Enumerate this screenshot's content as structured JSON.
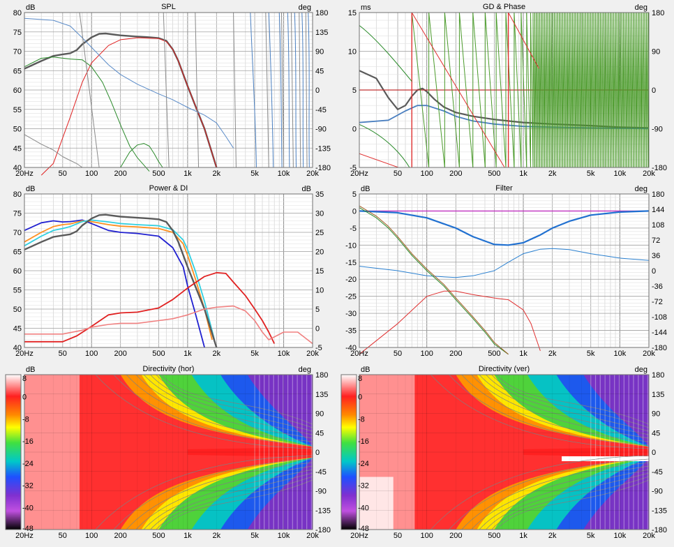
{
  "chart_data": [
    {
      "id": "spl",
      "type": "line",
      "title": "SPL",
      "ylabel": "dB",
      "y2label": "deg",
      "xscale": "log",
      "xlim": [
        20,
        20000
      ],
      "ylim": [
        40,
        80
      ],
      "y2lim": [
        -180,
        180
      ],
      "xticks": [
        20,
        50,
        100,
        200,
        500,
        1000,
        2000,
        5000,
        10000,
        20000
      ],
      "xtick_labels": [
        "20Hz",
        "50",
        "100",
        "200",
        "500",
        "1k",
        "2k",
        "5k",
        "10k",
        "20k"
      ],
      "yticks": [
        40,
        45,
        50,
        55,
        60,
        65,
        70,
        75,
        80
      ],
      "y2ticks": [
        -180,
        -135,
        -90,
        -45,
        0,
        45,
        90,
        135,
        180
      ],
      "series": [
        {
          "color": "#5a5a5a",
          "width": 2.4,
          "x": [
            20,
            30,
            40,
            50,
            60,
            70,
            80,
            100,
            120,
            140,
            200,
            300,
            400,
            500,
            600,
            700,
            800,
            1000,
            1200,
            1500,
            2000
          ],
          "y": [
            65.5,
            67.5,
            68.8,
            69.2,
            69.5,
            70.3,
            71.8,
            73.6,
            74.5,
            74.6,
            74.1,
            73.8,
            73.6,
            73.4,
            72.7,
            70.5,
            67.5,
            61,
            56,
            50,
            40
          ]
        },
        {
          "color": "#e02020",
          "width": 1,
          "x": [
            30,
            40,
            60,
            80,
            100,
            150,
            200,
            300,
            500,
            600,
            700,
            800,
            1000,
            1500,
            2000
          ],
          "y": [
            35,
            41,
            53,
            62,
            67,
            71.5,
            73,
            73.5,
            73.3,
            72.5,
            70.5,
            67.5,
            61,
            50,
            40
          ]
        },
        {
          "color": "#2a8a2a",
          "width": 1,
          "x": [
            20,
            30,
            40,
            60,
            80,
            100,
            130,
            160,
            200,
            250,
            300,
            400
          ],
          "y": [
            66,
            68.2,
            68.5,
            68,
            67.8,
            66,
            62,
            57,
            51,
            45.5,
            42.5,
            39
          ]
        },
        {
          "color": "#2a8a2a",
          "width": 1,
          "x": [
            200,
            250,
            300,
            350,
            400,
            450,
            500,
            550
          ],
          "y": [
            40,
            44,
            45.8,
            46.2,
            45.5,
            43.5,
            41.5,
            40
          ]
        },
        {
          "color": "#5a8bc8",
          "width": 1,
          "x": [
            20,
            40,
            60,
            80,
            100,
            150,
            200,
            300,
            500,
            700,
            1000,
            1500,
            2000,
            2500,
            3000
          ],
          "y": [
            78.5,
            78,
            76.5,
            73.5,
            71,
            66.5,
            64,
            61.5,
            59,
            57.5,
            55.5,
            53.5,
            51.5,
            48,
            45
          ]
        },
        {
          "color": "#8a8a8a",
          "width": 1,
          "x": [
            20,
            30,
            40,
            50,
            60,
            70,
            80,
            100,
            150,
            200,
            300,
            400,
            500
          ],
          "y": [
            48.5,
            46,
            44.5,
            42.8,
            41.8,
            41,
            40,
            40,
            40,
            40,
            40,
            40,
            40
          ]
        }
      ]
    },
    {
      "id": "gd_phase",
      "type": "line",
      "title": "GD & Phase",
      "ylabel": "ms",
      "y2label": "deg",
      "xscale": "log",
      "xlim": [
        20,
        20000
      ],
      "ylim": [
        -5,
        15
      ],
      "y2lim": [
        -180,
        180
      ],
      "xticks": [
        20,
        50,
        100,
        200,
        500,
        1000,
        2000,
        5000,
        10000,
        20000
      ],
      "xtick_labels": [
        "20Hz",
        "50",
        "100",
        "200",
        "500",
        "1k",
        "2k",
        "5k",
        "10k",
        "20k"
      ],
      "yticks": [
        -5,
        0,
        5,
        10,
        15
      ],
      "y2ticks": [
        -180,
        -90,
        0,
        90,
        180
      ],
      "series": [
        {
          "color": "#5a5a5a",
          "width": 2.2,
          "x": [
            20,
            30,
            40,
            50,
            60,
            70,
            80,
            90,
            100,
            120,
            150,
            200,
            300,
            500,
            700,
            1000,
            2000,
            5000,
            10000,
            20000
          ],
          "y": [
            7.5,
            6.5,
            4,
            2.5,
            3,
            4.2,
            5,
            5.2,
            4.8,
            3.8,
            2.8,
            2.1,
            1.6,
            1.2,
            1.0,
            0.8,
            0.6,
            0.4,
            0.2,
            0.1
          ]
        },
        {
          "color": "#4a7fc0",
          "width": 1.8,
          "x": [
            20,
            40,
            60,
            80,
            100,
            150,
            200,
            300,
            500,
            1000,
            2000,
            5000,
            10000,
            20000
          ],
          "y": [
            0.8,
            1.1,
            2.3,
            3,
            3,
            2.3,
            1.6,
            1.0,
            0.6,
            0.3,
            0.2,
            0.1,
            0.05,
            0.02
          ]
        },
        {
          "color": "#c03030",
          "width": 1.2,
          "x": [
            20,
            70,
            80,
            100,
            200,
            500,
            700,
            800,
            1000,
            20000
          ],
          "y": [
            5,
            5,
            5,
            5,
            5,
            5,
            5,
            5,
            5,
            5
          ]
        }
      ]
    },
    {
      "id": "power_di",
      "type": "line",
      "title": "Power & DI",
      "ylabel": "dB",
      "y2label": "dB",
      "xscale": "log",
      "xlim": [
        20,
        20000
      ],
      "ylim": [
        40,
        80
      ],
      "y2lim": [
        -5,
        35
      ],
      "xticks": [
        20,
        50,
        100,
        200,
        500,
        1000,
        2000,
        5000,
        10000,
        20000
      ],
      "xtick_labels": [
        "20Hz",
        "50",
        "100",
        "200",
        "500",
        "1k",
        "2k",
        "5k",
        "10k",
        "20k"
      ],
      "yticks": [
        40,
        45,
        50,
        55,
        60,
        65,
        70,
        75,
        80
      ],
      "y2ticks": [
        -5,
        0,
        5,
        10,
        15,
        20,
        25,
        30,
        35
      ],
      "series": [
        {
          "color": "#2020d0",
          "width": 1.8,
          "x": [
            20,
            30,
            40,
            50,
            60,
            80,
            100,
            150,
            200,
            300,
            500,
            700,
            900,
            1000,
            1200,
            1500
          ],
          "y": [
            70.5,
            72.5,
            73,
            72.7,
            72.8,
            73.2,
            72.3,
            70.5,
            70,
            69.7,
            69,
            66,
            61,
            56,
            49,
            40
          ]
        },
        {
          "color": "#ff9020",
          "width": 1.8,
          "x": [
            20,
            30,
            40,
            50,
            60,
            80,
            100,
            150,
            200,
            300,
            500,
            700,
            900,
            1000,
            1200,
            1500,
            1800
          ],
          "y": [
            67.5,
            70,
            71.5,
            72,
            72.2,
            73,
            72.8,
            72,
            71.6,
            71.4,
            71,
            70,
            67,
            64,
            58,
            50,
            42
          ]
        },
        {
          "color": "#30d0e0",
          "width": 1.8,
          "x": [
            20,
            30,
            40,
            50,
            60,
            80,
            100,
            150,
            200,
            300,
            500,
            700,
            900,
            1000,
            1200,
            1500,
            1900
          ],
          "y": [
            66.5,
            69,
            70.5,
            71,
            71.5,
            72.8,
            73.2,
            72.7,
            72.3,
            72,
            71.7,
            70.7,
            68,
            65.5,
            60,
            52,
            42
          ]
        },
        {
          "color": "#5a5a5a",
          "width": 2.4,
          "x": [
            20,
            30,
            40,
            50,
            60,
            70,
            80,
            100,
            120,
            140,
            200,
            300,
            400,
            500,
            600,
            700,
            800,
            1000,
            1200,
            1500,
            2000
          ],
          "y": [
            65.5,
            67.5,
            68.8,
            69.2,
            69.5,
            70.3,
            71.8,
            73.6,
            74.5,
            74.6,
            74.1,
            73.8,
            73.6,
            73.4,
            72.7,
            70.5,
            67.5,
            61,
            56,
            50,
            40
          ]
        },
        {
          "color": "#e02020",
          "width": 1.8,
          "x": [
            20,
            50,
            70,
            100,
            150,
            200,
            300,
            500,
            700,
            1000,
            1500,
            2000,
            2500,
            3000,
            4000,
            5000,
            6000,
            7000,
            8000
          ],
          "y": [
            41.5,
            41.5,
            43,
            45.5,
            48.5,
            49,
            49.2,
            50.3,
            52.5,
            55.5,
            58.5,
            59.5,
            59.3,
            57,
            53.5,
            50,
            47,
            44,
            41
          ]
        },
        {
          "color": "#f08080",
          "width": 1.6,
          "x": [
            20,
            50,
            80,
            100,
            150,
            200,
            300,
            500,
            700,
            1000,
            1500,
            2000,
            3000,
            4000,
            5000,
            6000,
            7000,
            10000,
            14000,
            20000
          ],
          "y": [
            43.5,
            43.5,
            44.5,
            45.3,
            46,
            46.3,
            46.3,
            47,
            47.5,
            48.5,
            50,
            50.5,
            50.8,
            49.5,
            47,
            44,
            42,
            44,
            44,
            41
          ]
        }
      ]
    },
    {
      "id": "filter",
      "type": "line",
      "title": "Filter",
      "ylabel": "dB",
      "y2label": "deg",
      "xscale": "log",
      "xlim": [
        20,
        20000
      ],
      "ylim": [
        -40,
        5
      ],
      "y2lim": [
        -180,
        180
      ],
      "xticks": [
        20,
        50,
        100,
        200,
        500,
        1000,
        2000,
        5000,
        10000,
        20000
      ],
      "xtick_labels": [
        "20Hz",
        "50",
        "100",
        "200",
        "500",
        "1k",
        "2k",
        "5k",
        "10k",
        "20k"
      ],
      "yticks": [
        -40,
        -35,
        -30,
        -25,
        -20,
        -15,
        -10,
        -5,
        0,
        5
      ],
      "y2ticks": [
        -180,
        -144,
        -108,
        -72,
        -36,
        0,
        36,
        72,
        108,
        144,
        180
      ],
      "series": [
        {
          "color": "#c030c0",
          "width": 1.4,
          "x": [
            20,
            20000
          ],
          "y": [
            0,
            0
          ]
        },
        {
          "color": "#2070d0",
          "width": 2.2,
          "x": [
            20,
            50,
            100,
            200,
            300,
            500,
            700,
            1000,
            1500,
            2000,
            3000,
            5000,
            10000,
            20000
          ],
          "y": [
            0,
            -0.5,
            -2,
            -5,
            -7.5,
            -9.8,
            -10,
            -9.3,
            -7,
            -5,
            -3,
            -1.2,
            -0.3,
            0
          ]
        },
        {
          "color": "#2a80d0",
          "width": 1,
          "x": [
            20,
            50,
            100,
            200,
            300,
            500,
            700,
            1000,
            1500,
            2000,
            3000,
            5000,
            10000,
            20000
          ],
          "y": [
            -16.2,
            -17.5,
            -19,
            -19.5,
            -19,
            -17.5,
            -15,
            -12.5,
            -11.2,
            -11,
            -11.3,
            -12.5,
            -13.8,
            -14.5
          ]
        },
        {
          "color": "#2a8a2a",
          "width": 1,
          "x": [
            20,
            30,
            40,
            50,
            70,
            100,
            150,
            200,
            300,
            400,
            500,
            700
          ],
          "y": [
            1,
            -2,
            -5,
            -8,
            -13,
            -17.5,
            -22,
            -26,
            -31.5,
            -35.5,
            -39,
            -44
          ]
        },
        {
          "color": "#a05a20",
          "width": 1,
          "x": [
            20,
            30,
            40,
            50,
            70,
            100,
            150,
            200,
            300,
            400,
            500,
            700
          ],
          "y": [
            1.5,
            -1.5,
            -4.5,
            -7.5,
            -12.5,
            -17,
            -21.5,
            -25.5,
            -31,
            -35,
            -38.5,
            -43.5
          ]
        },
        {
          "color": "#e03030",
          "width": 1,
          "x": [
            20,
            50,
            100,
            150,
            200,
            300,
            500,
            700,
            1000,
            1200,
            1500
          ],
          "y": [
            -45,
            -33,
            -25,
            -23.5,
            -23.5,
            -24.5,
            -25.5,
            -26,
            -29,
            -33,
            -41
          ]
        }
      ]
    },
    {
      "id": "dir_hor",
      "type": "heatmap",
      "title": "Directivity (hor)",
      "ylabel": "dB",
      "y2label": "deg",
      "xscale": "log",
      "xlim": [
        20,
        20000
      ],
      "ylim": [
        -180,
        180
      ],
      "colorbar_ticks": [
        "8",
        "0",
        "-8",
        "-16",
        "-24",
        "-32",
        "-40",
        "-48"
      ],
      "xticks": [
        20,
        50,
        100,
        200,
        500,
        1000,
        2000,
        5000,
        10000,
        20000
      ],
      "xtick_labels": [
        "20Hz",
        "50",
        "100",
        "200",
        "500",
        "1k",
        "2k",
        "5k",
        "10k",
        "20k"
      ],
      "y2ticks": [
        -180,
        -135,
        -90,
        -45,
        0,
        45,
        90,
        135,
        180
      ]
    },
    {
      "id": "dir_ver",
      "type": "heatmap",
      "title": "Directivity (ver)",
      "ylabel": "dB",
      "y2label": "deg",
      "xscale": "log",
      "xlim": [
        20,
        20000
      ],
      "ylim": [
        -180,
        180
      ],
      "colorbar_ticks": [
        "8",
        "0",
        "-8",
        "-16",
        "-24",
        "-32",
        "-40",
        "-48"
      ],
      "xticks": [
        20,
        50,
        100,
        200,
        500,
        1000,
        2000,
        5000,
        10000,
        20000
      ],
      "xtick_labels": [
        "20Hz",
        "50",
        "100",
        "200",
        "500",
        "1k",
        "2k",
        "5k",
        "10k",
        "20k"
      ],
      "y2ticks": [
        -180,
        -135,
        -90,
        -45,
        0,
        45,
        90,
        135,
        180
      ]
    }
  ]
}
